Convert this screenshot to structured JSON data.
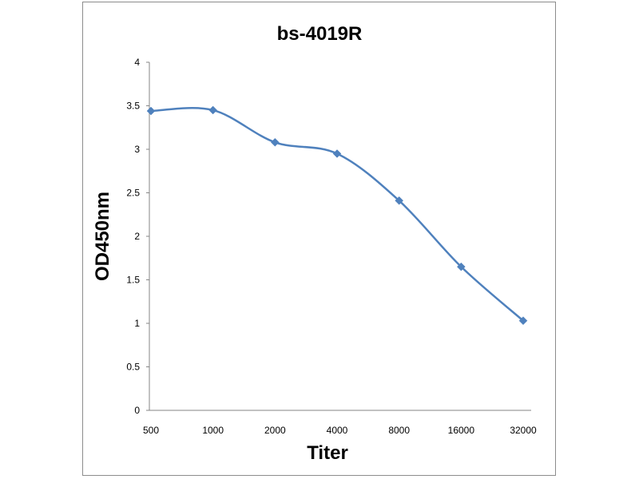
{
  "chart_data": {
    "type": "line",
    "title": "bs-4019R",
    "xlabel": "Titer",
    "ylabel": "OD450nm",
    "categories": [
      "500",
      "1000",
      "2000",
      "4000",
      "8000",
      "16000",
      "32000"
    ],
    "series": [
      {
        "values": [
          3.44,
          3.45,
          3.08,
          2.95,
          2.41,
          1.65,
          1.03
        ]
      }
    ],
    "yticks": [
      "0",
      "0.5",
      "1",
      "1.5",
      "2",
      "2.5",
      "3",
      "3.5",
      "4"
    ],
    "ylim": [
      0,
      4
    ],
    "grid": false,
    "legend": "none",
    "smooth": true,
    "line_color": "#4f81bd",
    "marker": "diamond",
    "axis_color": "#868686"
  }
}
